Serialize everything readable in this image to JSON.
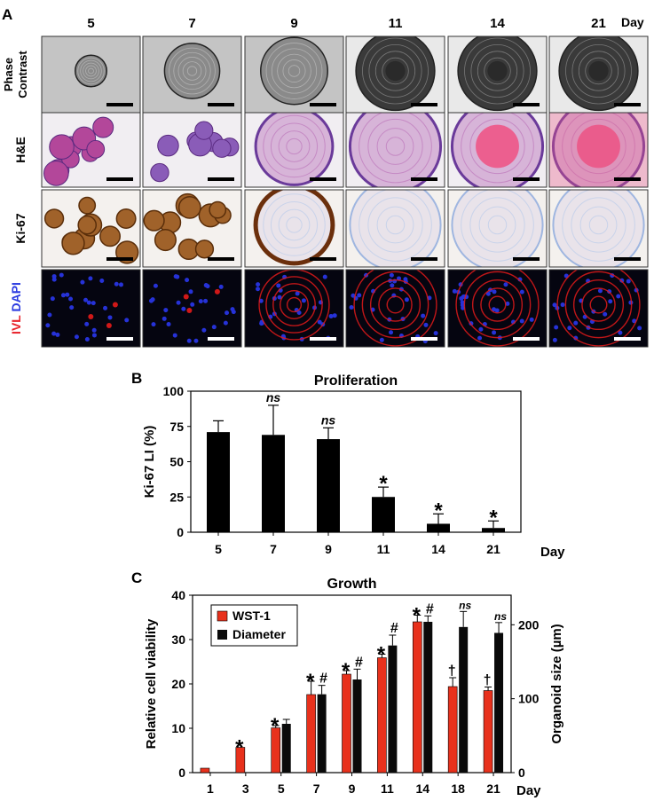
{
  "panelA": {
    "letter": "A",
    "unit": "Day",
    "days": [
      "5",
      "7",
      "9",
      "11",
      "14",
      "21"
    ],
    "rows": [
      {
        "label_line1": "Phase",
        "label_line2": "Contrast",
        "kind": "phase"
      },
      {
        "label_line1": "H&E",
        "label_line2": "",
        "kind": "he"
      },
      {
        "label_line1": "Ki-67",
        "label_line2": "",
        "kind": "ki"
      },
      {
        "label_ivl": "IVL",
        "label_dapi": "DAPI",
        "kind": "fluor"
      }
    ],
    "colors": {
      "ivl": "#e8232a",
      "dapi": "#2b3be0",
      "he_pink": "#e8a8c8",
      "he_purple": "#6a3a9a",
      "ki_brown": "#7a3d12",
      "ki_blue": "#9fb6e0"
    }
  },
  "panelB": {
    "letter": "B",
    "chart_data": {
      "type": "bar",
      "title": "Proliferation",
      "ylabel": "Ki-67 LI (%)",
      "xlabel": "Day",
      "ylim": [
        0,
        100
      ],
      "yticks": [
        "0",
        "25",
        "50",
        "75",
        "100"
      ],
      "categories": [
        "5",
        "7",
        "9",
        "11",
        "14",
        "21"
      ],
      "values": [
        71,
        69,
        66,
        25,
        6,
        3
      ],
      "errors": [
        8,
        21,
        8,
        7,
        7,
        5
      ],
      "annotations": [
        "",
        "ns",
        "ns",
        "*",
        "*",
        "*"
      ]
    }
  },
  "panelC": {
    "letter": "C",
    "chart_data": {
      "type": "bar",
      "title": "Growth",
      "ylabel_left": "Relative cell viability",
      "ylabel_right": "Organoid size (µm)",
      "xlabel": "Day",
      "ylim_left": [
        0,
        40
      ],
      "ylim_right": [
        0,
        240
      ],
      "yticks_left": [
        "0",
        "10",
        "20",
        "30",
        "40"
      ],
      "yticks_right": [
        "0",
        "100",
        "200"
      ],
      "categories": [
        "1",
        "3",
        "5",
        "7",
        "9",
        "11",
        "14",
        "18",
        "21"
      ],
      "series": [
        {
          "name": "WST-1",
          "color": "#e8311c",
          "axis": "left",
          "values": [
            1,
            5.7,
            10.1,
            17.6,
            22.2,
            25.9,
            34.0,
            19.4,
            18.5
          ],
          "errors": [
            0,
            0,
            0.5,
            3.0,
            0.8,
            0.8,
            1.5,
            2.0,
            0.8
          ],
          "annotations": [
            "",
            "*",
            "*",
            "*",
            "*",
            "*",
            "*",
            "†",
            "†"
          ]
        },
        {
          "name": "Diameter",
          "color": "#0a0a0a",
          "axis": "right",
          "values": [
            null,
            null,
            66,
            106,
            126,
            172,
            204,
            197,
            189
          ],
          "errors": [
            0,
            0,
            6,
            12,
            14,
            14,
            8,
            21,
            14
          ],
          "annotations": [
            "",
            "",
            "",
            "#",
            "#",
            "#",
            "#",
            "ns",
            "ns"
          ]
        }
      ]
    }
  }
}
